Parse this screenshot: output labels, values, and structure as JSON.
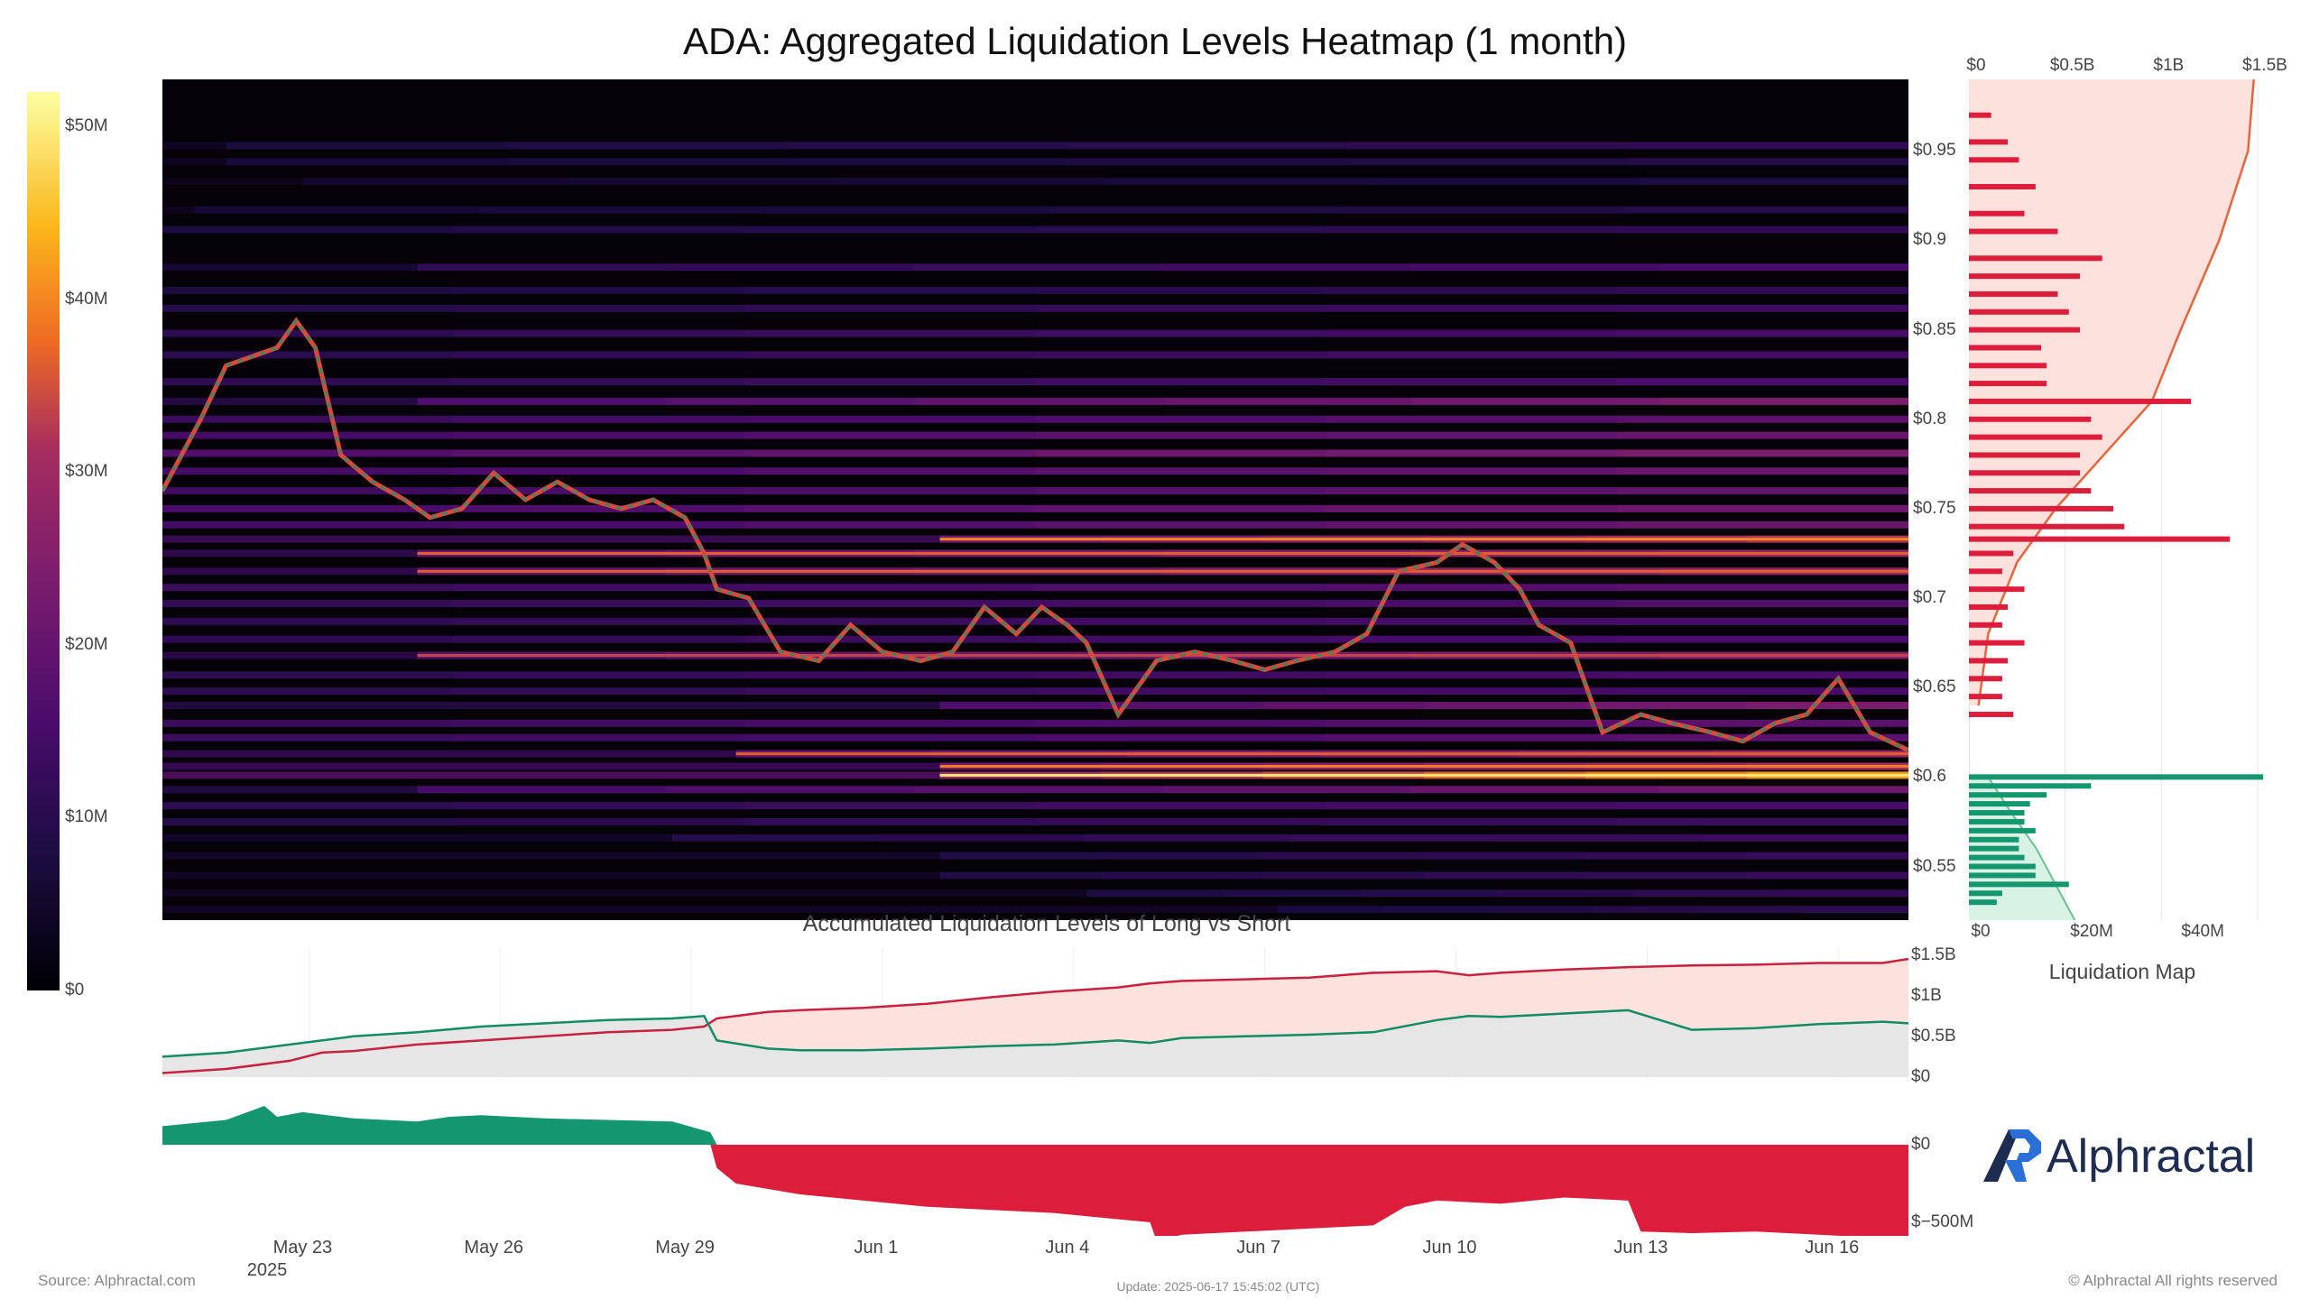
{
  "title": "ADA: Aggregated Liquidation Levels Heatmap (1 month)",
  "subtitle": "Accumulated Liquidation Levels of Long vs Short",
  "liquidation_map_label": "Liquidation Map",
  "source": "Source: Alphractal.com",
  "update": "Update: 2025-06-17 15:45:02 (UTC)",
  "copyright": "© Alphractal All rights reserved",
  "logo": "Alphractal",
  "colors": {
    "short": "#dc1e3c",
    "long": "#14966e",
    "short_fill": "#fde1dd",
    "long_fill": "#e6e6e6",
    "logo": "#1e2c52"
  },
  "colorbar": {
    "ticks": [
      "$50M",
      "$40M",
      "$30M",
      "$20M",
      "$10M",
      "$0"
    ]
  },
  "x_axis": {
    "ticks": [
      "May 23",
      "May 26",
      "May 29",
      "Jun 1",
      "Jun 4",
      "Jun 7",
      "Jun 10",
      "Jun 13",
      "Jun 16"
    ],
    "year_label": "2025"
  },
  "price_axis": {
    "ticks": [
      "$0.95",
      "$0.9",
      "$0.85",
      "$0.8",
      "$0.75",
      "$0.7",
      "$0.65",
      "$0.6",
      "$0.55"
    ]
  },
  "liq_map_axes": {
    "top_ticks": [
      "$0",
      "$0.5B",
      "$1B",
      "$1.5B"
    ],
    "bottom_ticks": [
      "$0",
      "$20M",
      "$40M"
    ]
  },
  "accum_axis": {
    "ticks": [
      "$1.5B",
      "$1B",
      "$0.5B",
      "$0"
    ]
  },
  "delta_axis": {
    "ticks": [
      "$0",
      "$−500M"
    ]
  },
  "chart_data": {
    "type": "heatmap",
    "x_range_days": [
      0,
      27.4
    ],
    "price_range": [
      0.52,
      0.99
    ],
    "price_series": {
      "name": "ADA price",
      "x_days": [
        0,
        0.6,
        1,
        1.4,
        1.8,
        2.1,
        2.4,
        2.8,
        3.3,
        3.8,
        4.2,
        4.7,
        5.2,
        5.7,
        6.2,
        6.7,
        7.2,
        7.7,
        8.2,
        8.5,
        8.7,
        9.2,
        9.7,
        10.3,
        10.8,
        11.3,
        11.9,
        12.4,
        12.9,
        13.4,
        13.8,
        14.2,
        14.5,
        15.0,
        15.6,
        16.2,
        16.8,
        17.3,
        17.8,
        18.4,
        18.9,
        19.4,
        20.0,
        20.4,
        20.9,
        21.3,
        21.6,
        22.1,
        22.6,
        23.2,
        23.7,
        24.3,
        24.8,
        25.3,
        25.8,
        26.3,
        26.8,
        27.4
      ],
      "price": [
        0.76,
        0.8,
        0.83,
        0.835,
        0.84,
        0.855,
        0.84,
        0.78,
        0.765,
        0.755,
        0.745,
        0.75,
        0.77,
        0.755,
        0.765,
        0.755,
        0.75,
        0.755,
        0.745,
        0.725,
        0.705,
        0.7,
        0.67,
        0.665,
        0.685,
        0.67,
        0.665,
        0.67,
        0.695,
        0.68,
        0.695,
        0.685,
        0.675,
        0.635,
        0.665,
        0.67,
        0.665,
        0.66,
        0.665,
        0.67,
        0.68,
        0.715,
        0.72,
        0.73,
        0.72,
        0.705,
        0.685,
        0.675,
        0.625,
        0.635,
        0.63,
        0.625,
        0.62,
        0.63,
        0.635,
        0.655,
        0.625,
        0.615
      ]
    },
    "heat_bands": [
      {
        "price": 0.953,
        "intensity": 0.22,
        "x_start": 1.0
      },
      {
        "price": 0.944,
        "intensity": 0.18,
        "x_start": 1.0
      },
      {
        "price": 0.933,
        "intensity": 0.15,
        "x_start": 2.2
      },
      {
        "price": 0.917,
        "intensity": 0.18,
        "x_start": 0.5
      },
      {
        "price": 0.906,
        "intensity": 0.22,
        "x_start": 0.0
      },
      {
        "price": 0.885,
        "intensity": 0.3,
        "x_start": 4.0
      },
      {
        "price": 0.872,
        "intensity": 0.22,
        "x_start": 0.0
      },
      {
        "price": 0.862,
        "intensity": 0.26,
        "x_start": 0.0
      },
      {
        "price": 0.848,
        "intensity": 0.3,
        "x_start": 0.0
      },
      {
        "price": 0.836,
        "intensity": 0.28,
        "x_start": 0.0
      },
      {
        "price": 0.821,
        "intensity": 0.3,
        "x_start": 0.0
      },
      {
        "price": 0.81,
        "intensity": 0.45,
        "x_start": 4.0
      },
      {
        "price": 0.8,
        "intensity": 0.36,
        "x_start": 0.0
      },
      {
        "price": 0.791,
        "intensity": 0.4,
        "x_start": 0.0
      },
      {
        "price": 0.781,
        "intensity": 0.46,
        "x_start": 0.0
      },
      {
        "price": 0.771,
        "intensity": 0.4,
        "x_start": 0.0
      },
      {
        "price": 0.76,
        "intensity": 0.38,
        "x_start": 0.0
      },
      {
        "price": 0.75,
        "intensity": 0.42,
        "x_start": 0.0
      },
      {
        "price": 0.741,
        "intensity": 0.4,
        "x_start": 0.0
      },
      {
        "price": 0.733,
        "intensity": 0.62,
        "x_start": 12.2
      },
      {
        "price": 0.725,
        "intensity": 0.55,
        "x_start": 4.0
      },
      {
        "price": 0.715,
        "intensity": 0.55,
        "x_start": 4.0
      },
      {
        "price": 0.706,
        "intensity": 0.35,
        "x_start": 0.0
      },
      {
        "price": 0.697,
        "intensity": 0.32,
        "x_start": 0.0
      },
      {
        "price": 0.687,
        "intensity": 0.3,
        "x_start": 0.0
      },
      {
        "price": 0.677,
        "intensity": 0.3,
        "x_start": 0.0
      },
      {
        "price": 0.668,
        "intensity": 0.5,
        "x_start": 4.0
      },
      {
        "price": 0.657,
        "intensity": 0.3,
        "x_start": 0.0
      },
      {
        "price": 0.648,
        "intensity": 0.3,
        "x_start": 0.0
      },
      {
        "price": 0.64,
        "intensity": 0.45,
        "x_start": 12.2
      },
      {
        "price": 0.63,
        "intensity": 0.35,
        "x_start": 0.0
      },
      {
        "price": 0.622,
        "intensity": 0.35,
        "x_start": 0.0
      },
      {
        "price": 0.613,
        "intensity": 0.55,
        "x_start": 9.0
      },
      {
        "price": 0.606,
        "intensity": 0.6,
        "x_start": 12.2
      },
      {
        "price": 0.601,
        "intensity": 0.8,
        "x_start": 12.2
      },
      {
        "price": 0.593,
        "intensity": 0.42,
        "x_start": 4.0
      },
      {
        "price": 0.584,
        "intensity": 0.3,
        "x_start": 0.0
      },
      {
        "price": 0.575,
        "intensity": 0.26,
        "x_start": 0.0
      },
      {
        "price": 0.566,
        "intensity": 0.26,
        "x_start": 8.0
      },
      {
        "price": 0.556,
        "intensity": 0.24,
        "x_start": 12.2
      },
      {
        "price": 0.545,
        "intensity": 0.24,
        "x_start": 12.2
      },
      {
        "price": 0.535,
        "intensity": 0.22,
        "x_start": 14.5
      },
      {
        "price": 0.526,
        "intensity": 0.2,
        "x_start": 17.5
      }
    ],
    "liquidation_map": {
      "short_prices": [
        0.97,
        0.955,
        0.945,
        0.93,
        0.915,
        0.905,
        0.89,
        0.88,
        0.87,
        0.86,
        0.85,
        0.84,
        0.83,
        0.82,
        0.81,
        0.8,
        0.79,
        0.78,
        0.77,
        0.76,
        0.75,
        0.74,
        0.733,
        0.725,
        0.715,
        0.705,
        0.695,
        0.685,
        0.675,
        0.665,
        0.655,
        0.645,
        0.635
      ],
      "short_values_M": [
        4,
        7,
        9,
        12,
        10,
        16,
        24,
        20,
        16,
        18,
        20,
        13,
        14,
        14,
        40,
        22,
        24,
        20,
        20,
        22,
        26,
        28,
        47,
        8,
        6,
        10,
        7,
        6,
        10,
        7,
        6,
        6,
        8
      ],
      "long_prices": [
        0.6,
        0.595,
        0.59,
        0.585,
        0.58,
        0.575,
        0.57,
        0.565,
        0.56,
        0.555,
        0.55,
        0.545,
        0.54,
        0.535,
        0.53
      ],
      "long_values_M": [
        53,
        22,
        14,
        11,
        10,
        10,
        12,
        9,
        9,
        10,
        12,
        12,
        18,
        6,
        5
      ],
      "short_cumulative_B": {
        "prices": [
          0.64,
          0.68,
          0.72,
          0.75,
          0.78,
          0.81,
          0.85,
          0.9,
          0.95,
          0.99
        ],
        "values": [
          0.05,
          0.1,
          0.25,
          0.45,
          0.7,
          0.95,
          1.1,
          1.3,
          1.45,
          1.48
        ]
      },
      "long_cumulative_B": {
        "prices": [
          0.6,
          0.58,
          0.56,
          0.54,
          0.52
        ],
        "values": [
          0.1,
          0.22,
          0.35,
          0.45,
          0.55
        ]
      }
    },
    "accumulated": {
      "x_days": [
        0,
        1,
        2,
        2.5,
        3,
        4,
        5,
        6,
        7,
        8,
        8.5,
        8.7,
        9.5,
        10,
        11,
        12,
        13,
        14,
        15,
        15.5,
        16,
        17,
        18,
        19,
        20,
        20.5,
        21,
        22,
        23,
        24,
        25,
        26,
        27,
        27.4
      ],
      "short_B": [
        0.05,
        0.1,
        0.2,
        0.3,
        0.32,
        0.4,
        0.45,
        0.5,
        0.55,
        0.58,
        0.62,
        0.72,
        0.8,
        0.82,
        0.85,
        0.9,
        0.98,
        1.05,
        1.1,
        1.15,
        1.18,
        1.2,
        1.22,
        1.28,
        1.3,
        1.25,
        1.28,
        1.32,
        1.35,
        1.37,
        1.38,
        1.4,
        1.4,
        1.45
      ],
      "long_B": [
        0.25,
        0.3,
        0.4,
        0.45,
        0.5,
        0.55,
        0.62,
        0.66,
        0.7,
        0.72,
        0.75,
        0.45,
        0.35,
        0.33,
        0.33,
        0.35,
        0.38,
        0.4,
        0.45,
        0.42,
        0.48,
        0.5,
        0.52,
        0.55,
        0.7,
        0.75,
        0.74,
        0.78,
        0.82,
        0.58,
        0.6,
        0.65,
        0.68,
        0.66
      ]
    },
    "delta": {
      "x_days": [
        0,
        1,
        1.6,
        1.8,
        2.2,
        3,
        4,
        4.5,
        5,
        6,
        7,
        8,
        8.6,
        8.7,
        9,
        10,
        11,
        12,
        13,
        14,
        15,
        15.5,
        15.6,
        16,
        17,
        18,
        19,
        19.5,
        20,
        21,
        22,
        23,
        23.2,
        24,
        25,
        26,
        27,
        27.4
      ],
      "net_M": [
        120,
        160,
        250,
        180,
        210,
        170,
        150,
        180,
        190,
        170,
        160,
        150,
        80,
        -150,
        -250,
        -320,
        -360,
        -400,
        -420,
        -440,
        -480,
        -500,
        -620,
        -580,
        -560,
        -540,
        -520,
        -400,
        -360,
        -380,
        -340,
        -360,
        -560,
        -570,
        -560,
        -580,
        -600,
        -660
      ]
    }
  }
}
